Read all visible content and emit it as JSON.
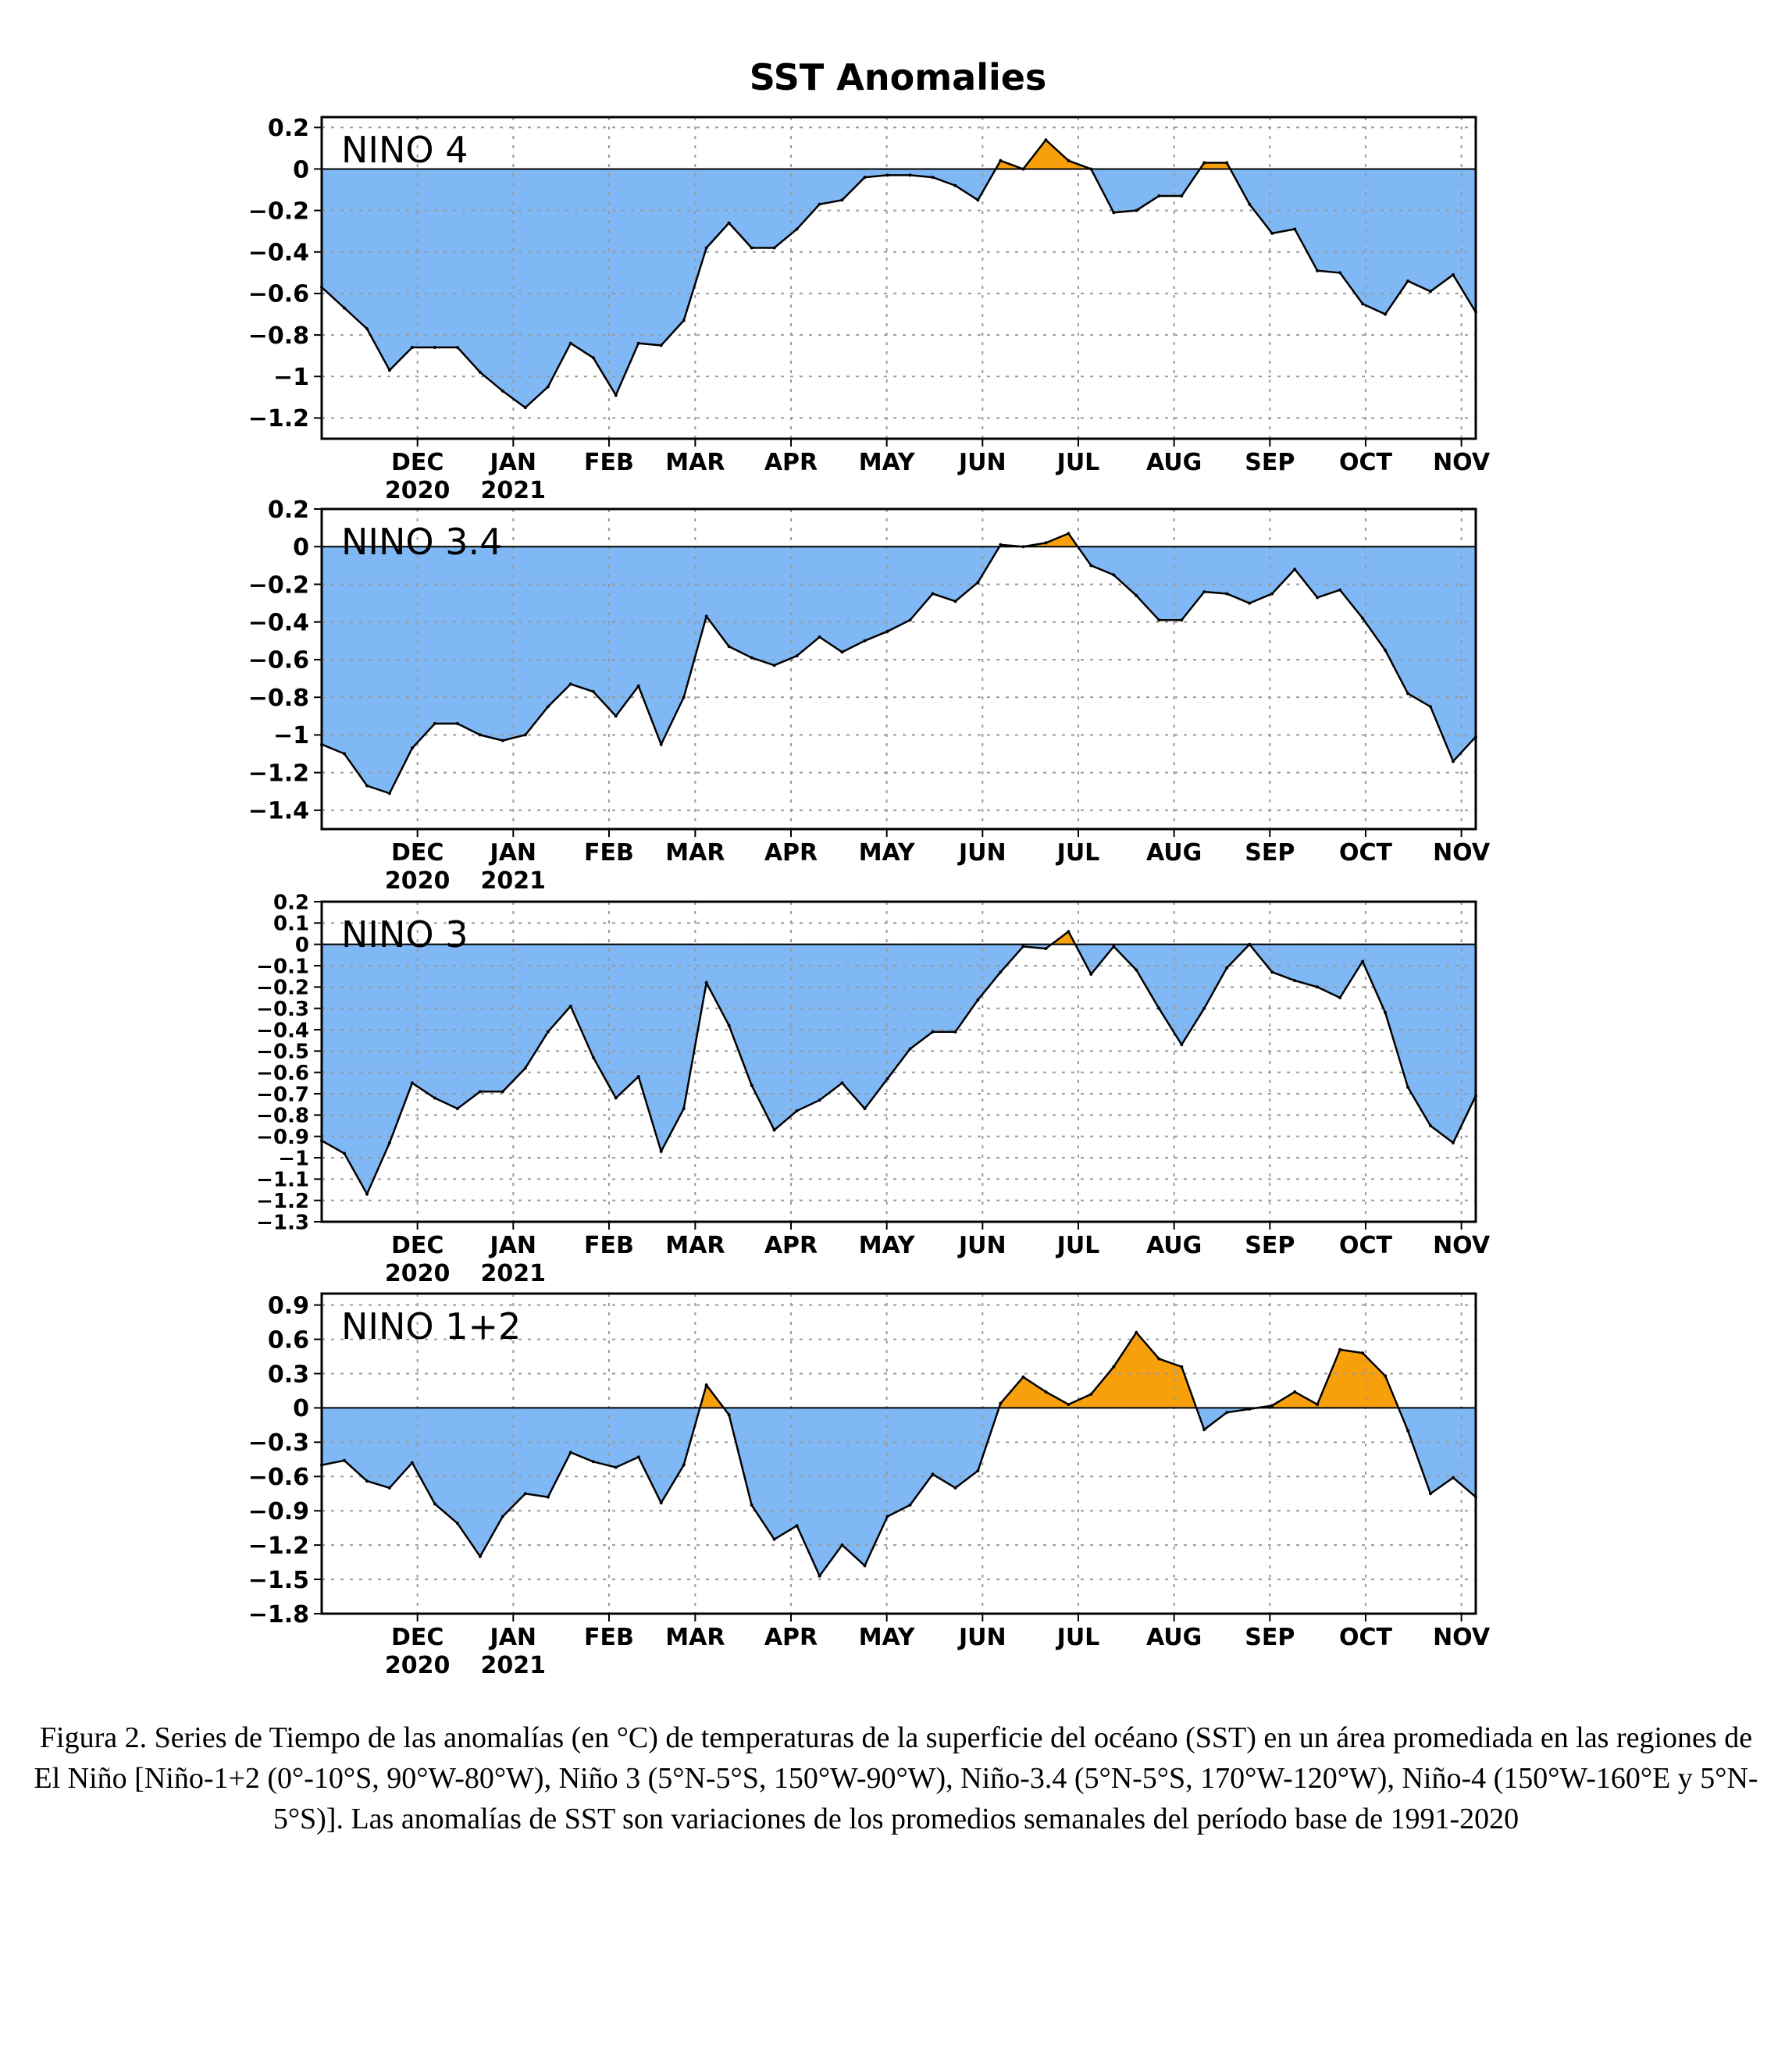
{
  "figure_title": "SST Anomalies",
  "colors": {
    "negative": "#7fb8f5",
    "positive": "#f7a00b",
    "line": "#000000",
    "grid": "#9a9a9a"
  },
  "month_ticks": [
    {
      "label": "DEC",
      "year": "2020",
      "t": 1.0
    },
    {
      "label": "JAN",
      "year": "2021",
      "t": 2.0
    },
    {
      "label": "FEB",
      "year": "",
      "t": 3.0
    },
    {
      "label": "MAR",
      "year": "",
      "t": 3.9
    },
    {
      "label": "APR",
      "year": "",
      "t": 4.9
    },
    {
      "label": "MAY",
      "year": "",
      "t": 5.9
    },
    {
      "label": "JUN",
      "year": "",
      "t": 6.9
    },
    {
      "label": "JUL",
      "year": "",
      "t": 7.9
    },
    {
      "label": "AUG",
      "year": "",
      "t": 8.9
    },
    {
      "label": "SEP",
      "year": "",
      "t": 9.9
    },
    {
      "label": "OCT",
      "year": "",
      "t": 10.9
    },
    {
      "label": "NOV",
      "year": "",
      "t": 11.9
    }
  ],
  "chart_data": [
    {
      "type": "area",
      "label": "NINO 4",
      "ylim": [
        -1.3,
        0.25
      ],
      "yticks": [
        0.2,
        0,
        -0.2,
        -0.4,
        -0.6,
        -0.8,
        -1,
        -1.2
      ],
      "ytick_labels": [
        "0.2",
        "0",
        "−0.2",
        "−0.4",
        "−0.6",
        "−0.8",
        "−1",
        "−1.2"
      ],
      "values": [
        -0.57,
        -0.67,
        -0.77,
        -0.97,
        -0.86,
        -0.86,
        -0.86,
        -0.98,
        -1.07,
        -1.15,
        -1.05,
        -0.84,
        -0.91,
        -1.09,
        -0.84,
        -0.85,
        -0.73,
        -0.38,
        -0.26,
        -0.38,
        -0.38,
        -0.29,
        -0.17,
        -0.15,
        -0.04,
        -0.03,
        -0.03,
        -0.04,
        -0.08,
        -0.15,
        0.04,
        0.0,
        0.14,
        0.04,
        0.0,
        -0.21,
        -0.2,
        -0.13,
        -0.13,
        0.03,
        0.03,
        -0.17,
        -0.31,
        -0.29,
        -0.49,
        -0.5,
        -0.65,
        -0.7,
        -0.54,
        -0.59,
        -0.51,
        -0.69
      ]
    },
    {
      "type": "area",
      "label": "NINO 3.4",
      "ylim": [
        -1.5,
        0.2
      ],
      "yticks": [
        0.2,
        0,
        -0.2,
        -0.4,
        -0.6,
        -0.8,
        -1,
        -1.2,
        -1.4
      ],
      "ytick_labels": [
        "0.2",
        "0",
        "−0.2",
        "−0.4",
        "−0.6",
        "−0.8",
        "−1",
        "−1.2",
        "−1.4"
      ],
      "values": [
        -1.05,
        -1.1,
        -1.27,
        -1.31,
        -1.07,
        -0.94,
        -0.94,
        -1.0,
        -1.03,
        -1.0,
        -0.85,
        -0.73,
        -0.77,
        -0.9,
        -0.74,
        -1.05,
        -0.8,
        -0.37,
        -0.53,
        -0.59,
        -0.63,
        -0.58,
        -0.48,
        -0.56,
        -0.5,
        -0.45,
        -0.39,
        -0.25,
        -0.29,
        -0.19,
        0.01,
        0.0,
        0.02,
        0.07,
        -0.1,
        -0.15,
        -0.26,
        -0.39,
        -0.39,
        -0.24,
        -0.25,
        -0.3,
        -0.25,
        -0.12,
        -0.27,
        -0.23,
        -0.38,
        -0.55,
        -0.78,
        -0.85,
        -1.14,
        -1.01
      ]
    },
    {
      "type": "area",
      "label": "NINO 3",
      "ylim": [
        -1.3,
        0.2
      ],
      "yticks": [
        0.2,
        0.1,
        0,
        -0.1,
        -0.2,
        -0.3,
        -0.4,
        -0.5,
        -0.6,
        -0.7,
        -0.8,
        -0.9,
        -1,
        -1.1,
        -1.2,
        -1.3
      ],
      "ytick_labels": [
        "0.2",
        "0.1",
        "0",
        "−0.1",
        "−0.2",
        "−0.3",
        "−0.4",
        "−0.5",
        "−0.6",
        "−0.7",
        "−0.8",
        "−0.9",
        "−1",
        "−1.1",
        "−1.2",
        "−1.3"
      ],
      "values": [
        -0.92,
        -0.98,
        -1.17,
        -0.93,
        -0.65,
        -0.72,
        -0.77,
        -0.69,
        -0.69,
        -0.58,
        -0.41,
        -0.29,
        -0.53,
        -0.72,
        -0.62,
        -0.97,
        -0.77,
        -0.18,
        -0.38,
        -0.66,
        -0.87,
        -0.78,
        -0.73,
        -0.65,
        -0.77,
        -0.63,
        -0.49,
        -0.41,
        -0.41,
        -0.26,
        -0.13,
        -0.01,
        -0.02,
        0.06,
        -0.14,
        -0.01,
        -0.12,
        -0.3,
        -0.47,
        -0.3,
        -0.11,
        0.0,
        -0.13,
        -0.17,
        -0.2,
        -0.25,
        -0.08,
        -0.32,
        -0.67,
        -0.85,
        -0.93,
        -0.71
      ]
    },
    {
      "type": "area",
      "label": "NINO 1+2",
      "ylim": [
        -1.8,
        1.0
      ],
      "yticks": [
        0.9,
        0.6,
        0.3,
        0,
        -0.3,
        -0.6,
        -0.9,
        -1.2,
        -1.5,
        -1.8
      ],
      "ytick_labels": [
        "0.9",
        "0.6",
        "0.3",
        "0",
        "−0.3",
        "−0.6",
        "−0.9",
        "−1.2",
        "−1.5",
        "−1.8"
      ],
      "values": [
        -0.5,
        -0.46,
        -0.64,
        -0.7,
        -0.48,
        -0.84,
        -1.01,
        -1.3,
        -0.95,
        -0.75,
        -0.78,
        -0.39,
        -0.47,
        -0.52,
        -0.43,
        -0.83,
        -0.5,
        0.2,
        -0.06,
        -0.85,
        -1.15,
        -1.03,
        -1.47,
        -1.2,
        -1.38,
        -0.95,
        -0.85,
        -0.58,
        -0.7,
        -0.55,
        0.04,
        0.27,
        0.14,
        0.03,
        0.12,
        0.36,
        0.66,
        0.43,
        0.36,
        -0.19,
        -0.04,
        -0.01,
        0.02,
        0.14,
        0.03,
        0.51,
        0.48,
        0.28,
        -0.2,
        -0.75,
        -0.61,
        -0.78
      ]
    }
  ],
  "caption": "Figura 2. Series de Tiempo de las anomalías (en °C) de temperaturas de la superficie del océano (SST) en un área promediada en las regiones de El Niño [Niño-1+2 (0°-10°S, 90°W-80°W), Niño 3 (5°N-5°S, 150°W-90°W), Niño-3.4 (5°N-5°S, 170°W-120°W), Niño-4 (150°W-160°E y 5°N-5°S)]. Las anomalías de SST son variaciones de los promedios semanales del período base de 1991-2020"
}
